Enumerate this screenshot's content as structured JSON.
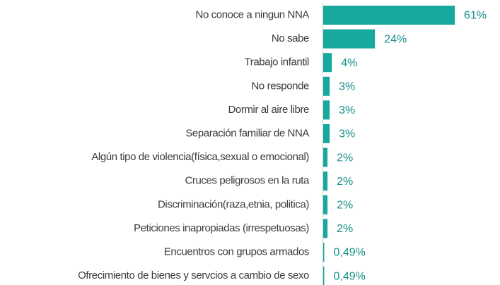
{
  "chart_data": {
    "type": "bar",
    "orientation": "horizontal",
    "categories": [
      "No conoce a ningun NNA",
      "No sabe",
      "Trabajo infantil",
      "No responde",
      "Dormir al aire libre",
      "Separación familiar de NNA",
      "Algún tipo de violencia(física,sexual o emocional)",
      "Cruces peligrosos en la ruta",
      "Discriminación(raza,etnia, politica)",
      "Peticiones inapropiadas (irrespetuosas)",
      "Encuentros con grupos armados",
      "Ofrecimiento de bienes y servcios a cambio de  sexo"
    ],
    "values": [
      61,
      24,
      4,
      3,
      3,
      3,
      2,
      2,
      2,
      2,
      0.49,
      0.49
    ],
    "value_labels": [
      "61%",
      "24%",
      "4%",
      "3%",
      "3%",
      "3%",
      "2%",
      "2%",
      "2%",
      "2%",
      "0,49%",
      "0,49%"
    ],
    "color": "#17a89e"
  }
}
